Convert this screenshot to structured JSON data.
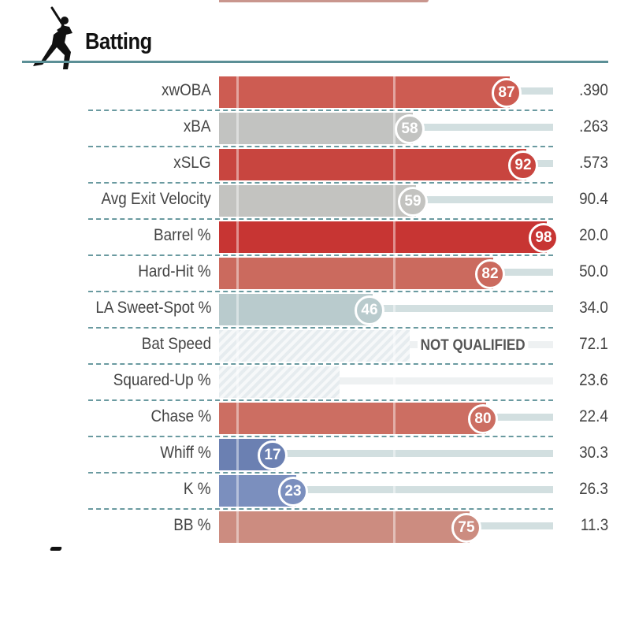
{
  "section": {
    "title": "Batting",
    "icon": "batter-silhouette-icon"
  },
  "metrics": [
    {
      "label": "xwOBA",
      "percentile": 87,
      "value": ".390",
      "qualified": true,
      "color": "#cd5c52"
    },
    {
      "label": "xBA",
      "percentile": 58,
      "value": ".263",
      "qualified": true,
      "color": "#c2c3c1"
    },
    {
      "label": "xSLG",
      "percentile": 92,
      "value": ".573",
      "qualified": true,
      "color": "#c8453f"
    },
    {
      "label": "Avg Exit Velocity",
      "percentile": 59,
      "value": "90.4",
      "qualified": true,
      "color": "#c3c3c0"
    },
    {
      "label": "Barrel %",
      "percentile": 98,
      "value": "20.0",
      "qualified": true,
      "color": "#c73533"
    },
    {
      "label": "Hard-Hit %",
      "percentile": 82,
      "value": "50.0",
      "qualified": true,
      "color": "#cb6a5e"
    },
    {
      "label": "LA Sweet-Spot %",
      "percentile": 46,
      "value": "34.0",
      "qualified": true,
      "color": "#b9cbcd"
    },
    {
      "label": "Bat Speed",
      "percentile": null,
      "value": "72.1",
      "qualified": false,
      "status": "NOT QUALIFIED",
      "nq_fill": 0.57
    },
    {
      "label": "Squared-Up %",
      "percentile": null,
      "value": "23.6",
      "qualified": false,
      "status": "",
      "nq_fill": 0.36
    },
    {
      "label": "Chase %",
      "percentile": 80,
      "value": "22.4",
      "qualified": true,
      "color": "#cc6e62"
    },
    {
      "label": "Whiff %",
      "percentile": 17,
      "value": "30.3",
      "qualified": true,
      "color": "#6b80b2"
    },
    {
      "label": "K %",
      "percentile": 23,
      "value": "26.3",
      "qualified": true,
      "color": "#7b8fbe"
    },
    {
      "label": "BB %",
      "percentile": 75,
      "value": "11.3",
      "qualified": true,
      "color": "#cc8c80"
    }
  ]
}
